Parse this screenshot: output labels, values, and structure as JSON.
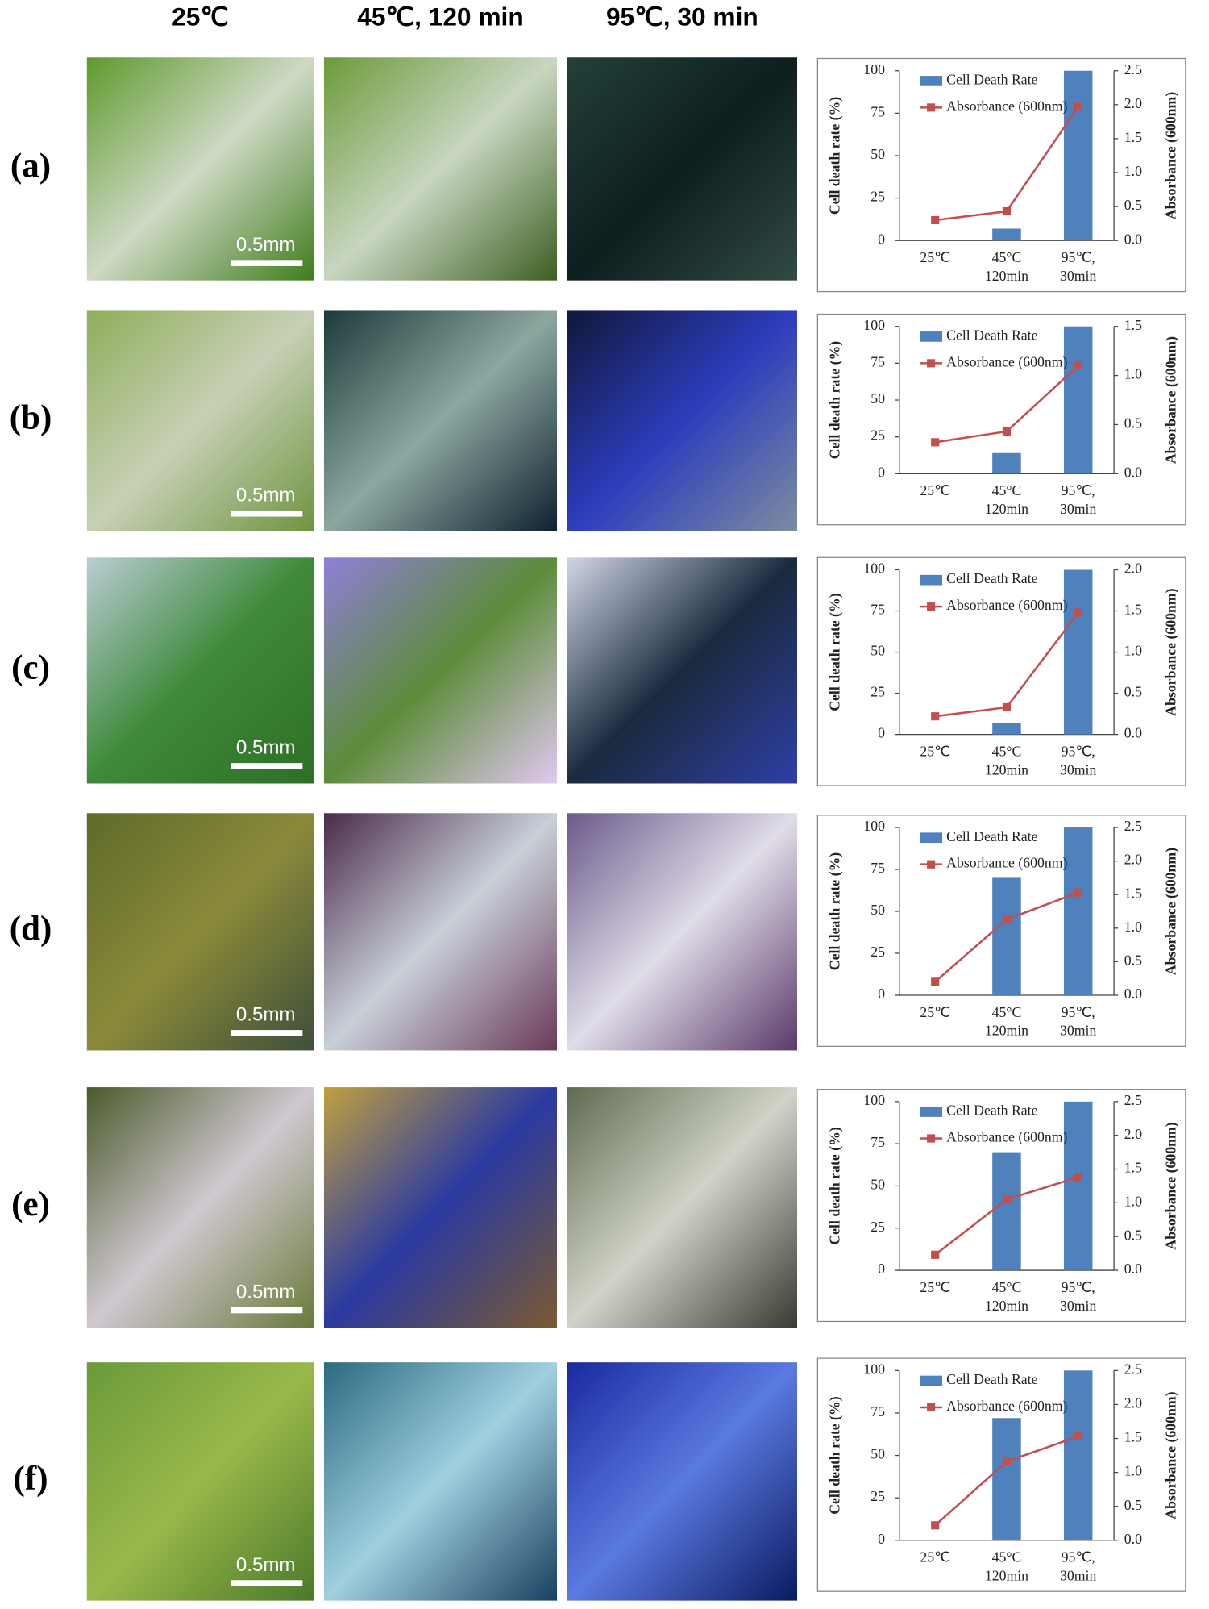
{
  "columns": [
    "25℃",
    "45℃, 120 min",
    "95℃, 30 min"
  ],
  "rows": [
    {
      "label": "(a)",
      "scale_bar": "0.5mm"
    },
    {
      "label": "(b)",
      "scale_bar": "0.5mm"
    },
    {
      "label": "(c)",
      "scale_bar": "0.5mm"
    },
    {
      "label": "(d)",
      "scale_bar": "0.5mm"
    },
    {
      "label": "(e)",
      "scale_bar": "0.5mm"
    },
    {
      "label": "(f)",
      "scale_bar": "0.5mm"
    }
  ],
  "chart_data": [
    {
      "type": "bar-line",
      "categories": [
        [
          "25℃"
        ],
        [
          "45°C",
          "120min"
        ],
        [
          "95℃,",
          "30min"
        ]
      ],
      "ylabel": "Cell death rate (%)",
      "y2label": "Absorbance (600nm)",
      "ylim": [
        0,
        100
      ],
      "yticks": [
        0,
        25,
        50,
        75,
        100
      ],
      "y2lim": [
        0,
        2.5
      ],
      "y2ticks": [
        {
          "value": 0,
          "label": "0.0"
        },
        {
          "value": 0.5,
          "label": "0.5"
        },
        {
          "value": 1,
          "label": "1.0"
        },
        {
          "value": 1.5,
          "label": "1.5"
        },
        {
          "value": 2,
          "label": "2.0"
        },
        {
          "value": 2.5,
          "label": "2.5"
        }
      ],
      "series": [
        {
          "name": "Cell Death Rate",
          "color": "#4f81bd",
          "values": [
            0,
            7,
            100
          ]
        },
        {
          "name": "Absorbance (600nm)",
          "color": "#c0504d",
          "axis": "y2",
          "values": [
            0.3,
            0.43,
            1.97
          ]
        }
      ]
    },
    {
      "type": "bar-line",
      "categories": [
        [
          "25℃"
        ],
        [
          "45°C",
          "120min"
        ],
        [
          "95℃,",
          "30min"
        ]
      ],
      "ylabel": "Cell death rate (%)",
      "y2label": "Absorbance (600nm)",
      "ylim": [
        0,
        100
      ],
      "yticks": [
        0,
        25,
        50,
        75,
        100
      ],
      "y2lim": [
        0,
        1.5
      ],
      "y2ticks": [
        {
          "value": 0,
          "label": "0.0"
        },
        {
          "value": 0.5,
          "label": "0.5"
        },
        {
          "value": 1,
          "label": "1.0"
        },
        {
          "value": 1.5,
          "label": "1.5"
        }
      ],
      "series": [
        {
          "name": "Cell Death Rate",
          "color": "#4f81bd",
          "values": [
            0,
            14,
            100
          ]
        },
        {
          "name": "Absorbance (600nm)",
          "color": "#c0504d",
          "axis": "y2",
          "values": [
            0.32,
            0.43,
            1.1
          ]
        }
      ]
    },
    {
      "type": "bar-line",
      "categories": [
        [
          "25℃"
        ],
        [
          "45°C",
          "120min"
        ],
        [
          "95℃,",
          "30min"
        ]
      ],
      "ylabel": "Cell death rate (%)",
      "y2label": "Absorbance (600nm)",
      "ylim": [
        0,
        100
      ],
      "yticks": [
        0,
        25,
        50,
        75,
        100
      ],
      "y2lim": [
        0,
        2
      ],
      "y2ticks": [
        {
          "value": 0,
          "label": "0.0"
        },
        {
          "value": 0.5,
          "label": "0.5"
        },
        {
          "value": 1,
          "label": "1.0"
        },
        {
          "value": 1.5,
          "label": "1.5"
        },
        {
          "value": 2,
          "label": "2.0"
        }
      ],
      "series": [
        {
          "name": "Cell Death Rate",
          "color": "#4f81bd",
          "values": [
            0,
            7,
            100
          ]
        },
        {
          "name": "Absorbance (600nm)",
          "color": "#c0504d",
          "axis": "y2",
          "values": [
            0.22,
            0.33,
            1.48
          ]
        }
      ]
    },
    {
      "type": "bar-line",
      "categories": [
        [
          "25℃"
        ],
        [
          "45°C",
          "120min"
        ],
        [
          "95℃,",
          "30min"
        ]
      ],
      "ylabel": "Cell death rate (%)",
      "y2label": "Absorbance (600nm)",
      "ylim": [
        0,
        100
      ],
      "yticks": [
        0,
        25,
        50,
        75,
        100
      ],
      "y2lim": [
        0,
        2.5
      ],
      "y2ticks": [
        {
          "value": 0,
          "label": "0.0"
        },
        {
          "value": 0.5,
          "label": "0.5"
        },
        {
          "value": 1,
          "label": "1.0"
        },
        {
          "value": 1.5,
          "label": "1.5"
        },
        {
          "value": 2,
          "label": "2.0"
        },
        {
          "value": 2.5,
          "label": "2.5"
        }
      ],
      "series": [
        {
          "name": "Cell Death Rate",
          "color": "#4f81bd",
          "values": [
            0,
            70,
            100
          ]
        },
        {
          "name": "Absorbance (600nm)",
          "color": "#c0504d",
          "axis": "y2",
          "values": [
            0.2,
            1.13,
            1.53
          ]
        }
      ]
    },
    {
      "type": "bar-line",
      "categories": [
        [
          "25℃"
        ],
        [
          "45°C",
          "120min"
        ],
        [
          "95℃,",
          "30min"
        ]
      ],
      "ylabel": "Cell death rate (%)",
      "y2label": "Absorbance (600nm)",
      "ylim": [
        0,
        100
      ],
      "yticks": [
        0,
        25,
        50,
        75,
        100
      ],
      "y2lim": [
        0,
        2.5
      ],
      "y2ticks": [
        {
          "value": 0,
          "label": "0.0"
        },
        {
          "value": 0.5,
          "label": "0.5"
        },
        {
          "value": 1,
          "label": "1.0"
        },
        {
          "value": 1.5,
          "label": "1.5"
        },
        {
          "value": 2,
          "label": "2.0"
        },
        {
          "value": 2.5,
          "label": "2.5"
        }
      ],
      "series": [
        {
          "name": "Cell Death Rate",
          "color": "#4f81bd",
          "values": [
            0,
            70,
            100
          ]
        },
        {
          "name": "Absorbance (600nm)",
          "color": "#c0504d",
          "axis": "y2",
          "values": [
            0.23,
            1.05,
            1.38
          ]
        }
      ]
    },
    {
      "type": "bar-line",
      "categories": [
        [
          "25℃"
        ],
        [
          "45°C",
          "120min"
        ],
        [
          "95℃,",
          "30min"
        ]
      ],
      "ylabel": "Cell death rate (%)",
      "y2label": "Absorbance (600nm)",
      "ylim": [
        0,
        100
      ],
      "yticks": [
        0,
        25,
        50,
        75,
        100
      ],
      "y2lim": [
        0,
        2.5
      ],
      "y2ticks": [
        {
          "value": 0,
          "label": "0.0"
        },
        {
          "value": 0.5,
          "label": "0.5"
        },
        {
          "value": 1,
          "label": "1.0"
        },
        {
          "value": 1.5,
          "label": "1.5"
        },
        {
          "value": 2,
          "label": "2.0"
        },
        {
          "value": 2.5,
          "label": "2.5"
        }
      ],
      "series": [
        {
          "name": "Cell Death Rate",
          "color": "#4f81bd",
          "values": [
            0,
            72,
            100
          ]
        },
        {
          "name": "Absorbance (600nm)",
          "color": "#c0504d",
          "axis": "y2",
          "values": [
            0.22,
            1.16,
            1.53
          ]
        }
      ]
    }
  ]
}
